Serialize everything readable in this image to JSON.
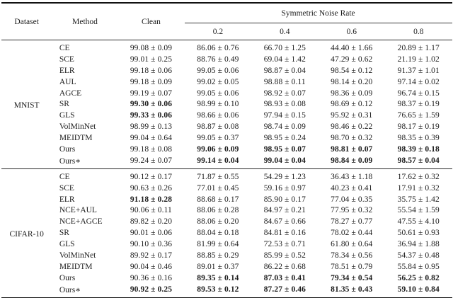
{
  "colors": {
    "background": "#ffffff",
    "text": "#1b1b1b",
    "rule": "#111111"
  },
  "table": {
    "headers": {
      "dataset": "Dataset",
      "method": "Method",
      "clean": "Clean",
      "noise_group": "Symmetric Noise Rate",
      "noise_levels": [
        "0.2",
        "0.4",
        "0.6",
        "0.8"
      ]
    },
    "sections": [
      {
        "dataset": "MNIST",
        "rows": [
          {
            "method": "CE",
            "cells": [
              {
                "v": "99.08 ± 0.09",
                "b": false
              },
              {
                "v": "86.06 ± 0.76",
                "b": false
              },
              {
                "v": "66.70 ± 1.25",
                "b": false
              },
              {
                "v": "44.40 ± 1.66",
                "b": false
              },
              {
                "v": "20.89 ± 1.17",
                "b": false
              }
            ]
          },
          {
            "method": "SCE",
            "cells": [
              {
                "v": "99.01 ± 0.25",
                "b": false
              },
              {
                "v": "88.76 ± 0.49",
                "b": false
              },
              {
                "v": "69.04 ± 1.42",
                "b": false
              },
              {
                "v": "47.29 ± 0.62",
                "b": false
              },
              {
                "v": "21.19 ± 1.02",
                "b": false
              }
            ]
          },
          {
            "method": "ELR",
            "cells": [
              {
                "v": "99.18 ± 0.06",
                "b": false
              },
              {
                "v": "99.05 ± 0.06",
                "b": false
              },
              {
                "v": "98.87 ± 0.04",
                "b": false
              },
              {
                "v": "98.54 ± 0.12",
                "b": false
              },
              {
                "v": "91.37 ± 1.01",
                "b": false
              }
            ]
          },
          {
            "method": "AUL",
            "cells": [
              {
                "v": "99.18 ± 0.09",
                "b": false
              },
              {
                "v": "99.02 ± 0.05",
                "b": false
              },
              {
                "v": "98.88 ± 0.11",
                "b": false
              },
              {
                "v": "98.14 ± 0.20",
                "b": false
              },
              {
                "v": "97.14 ± 0.02",
                "b": false
              }
            ]
          },
          {
            "method": "AGCE",
            "cells": [
              {
                "v": "99.19 ± 0.07",
                "b": false
              },
              {
                "v": "99.05 ± 0.06",
                "b": false
              },
              {
                "v": "98.92 ± 0.07",
                "b": false
              },
              {
                "v": "98.36 ± 0.09",
                "b": false
              },
              {
                "v": "96.74 ± 0.15",
                "b": false
              }
            ]
          },
          {
            "method": "SR",
            "cells": [
              {
                "v": "99.30 ± 0.06",
                "b": true
              },
              {
                "v": "98.99 ± 0.10",
                "b": false
              },
              {
                "v": "98.93 ± 0.08",
                "b": false
              },
              {
                "v": "98.69 ± 0.12",
                "b": false
              },
              {
                "v": "98.37 ± 0.19",
                "b": false
              }
            ]
          },
          {
            "method": "GLS",
            "cells": [
              {
                "v": "99.33 ± 0.06",
                "b": true
              },
              {
                "v": "98.66 ± 0.06",
                "b": false
              },
              {
                "v": "97.94 ± 0.15",
                "b": false
              },
              {
                "v": "95.92 ± 0.31",
                "b": false
              },
              {
                "v": "76.65 ± 1.59",
                "b": false
              }
            ]
          },
          {
            "method": "VolMinNet",
            "cells": [
              {
                "v": "98.99 ± 0.13",
                "b": false
              },
              {
                "v": "98.87 ± 0.08",
                "b": false
              },
              {
                "v": "98.74 ± 0.09",
                "b": false
              },
              {
                "v": "98.46 ± 0.22",
                "b": false
              },
              {
                "v": "98.17 ± 0.19",
                "b": false
              }
            ]
          },
          {
            "method": "MEIDTM",
            "cells": [
              {
                "v": "99.04 ± 0.64",
                "b": false
              },
              {
                "v": "99.05 ± 0.37",
                "b": false
              },
              {
                "v": "98.95 ± 0.24",
                "b": false
              },
              {
                "v": "98.70 ± 0.32",
                "b": false
              },
              {
                "v": "98.35 ± 0.39",
                "b": false
              }
            ]
          },
          {
            "method": "Ours",
            "cells": [
              {
                "v": "99.18 ± 0.08",
                "b": false
              },
              {
                "v": "99.06 ± 0.09",
                "b": true
              },
              {
                "v": "98.95 ± 0.07",
                "b": true
              },
              {
                "v": "98.81 ± 0.07",
                "b": true
              },
              {
                "v": "98.39 ± 0.18",
                "b": true
              }
            ]
          },
          {
            "method": "Ours∗",
            "cells": [
              {
                "v": "99.24 ± 0.07",
                "b": false
              },
              {
                "v": "99.14 ± 0.04",
                "b": true
              },
              {
                "v": "99.04 ± 0.04",
                "b": true
              },
              {
                "v": "98.84 ± 0.09",
                "b": true
              },
              {
                "v": "98.57 ± 0.04",
                "b": true
              }
            ]
          }
        ]
      },
      {
        "dataset": "CIFAR-10",
        "rows": [
          {
            "method": "CE",
            "cells": [
              {
                "v": "90.12 ± 0.17",
                "b": false
              },
              {
                "v": "71.87 ± 0.55",
                "b": false
              },
              {
                "v": "54.29 ± 1.23",
                "b": false
              },
              {
                "v": "36.43 ± 1.18",
                "b": false
              },
              {
                "v": "17.62 ± 0.32",
                "b": false
              }
            ]
          },
          {
            "method": "SCE",
            "cells": [
              {
                "v": "90.63 ± 0.26",
                "b": false
              },
              {
                "v": "77.01 ± 0.45",
                "b": false
              },
              {
                "v": "59.16 ± 0.97",
                "b": false
              },
              {
                "v": "40.23 ± 0.41",
                "b": false
              },
              {
                "v": "17.91 ± 0.32",
                "b": false
              }
            ]
          },
          {
            "method": "ELR",
            "cells": [
              {
                "v": "91.18 ± 0.28",
                "b": true
              },
              {
                "v": "88.68 ± 0.17",
                "b": false
              },
              {
                "v": "85.90 ± 0.17",
                "b": false
              },
              {
                "v": "77.04 ± 0.35",
                "b": false
              },
              {
                "v": "35.75 ± 1.42",
                "b": false
              }
            ]
          },
          {
            "method": "NCE+AUL",
            "cells": [
              {
                "v": "90.06 ± 0.11",
                "b": false
              },
              {
                "v": "88.06 ± 0.28",
                "b": false
              },
              {
                "v": "84.97 ± 0.21",
                "b": false
              },
              {
                "v": "77.95 ± 0.32",
                "b": false
              },
              {
                "v": "55.54 ± 1.59",
                "b": false
              }
            ]
          },
          {
            "method": "NCE+AGCE",
            "cells": [
              {
                "v": "89.82 ± 0.20",
                "b": false
              },
              {
                "v": "88.06 ± 0.20",
                "b": false
              },
              {
                "v": "84.67 ± 0.66",
                "b": false
              },
              {
                "v": "78.27 ± 0.77",
                "b": false
              },
              {
                "v": "47.55 ± 4.10",
                "b": false
              }
            ]
          },
          {
            "method": "SR",
            "cells": [
              {
                "v": "90.01 ± 0.06",
                "b": false
              },
              {
                "v": "88.04 ± 0.18",
                "b": false
              },
              {
                "v": "84.81 ± 0.16",
                "b": false
              },
              {
                "v": "78.02 ± 0.44",
                "b": false
              },
              {
                "v": "50.61 ± 0.93",
                "b": false
              }
            ]
          },
          {
            "method": "GLS",
            "cells": [
              {
                "v": "90.10 ± 0.36",
                "b": false
              },
              {
                "v": "81.99 ± 0.64",
                "b": false
              },
              {
                "v": "72.53 ± 0.71",
                "b": false
              },
              {
                "v": "61.80 ± 0.64",
                "b": false
              },
              {
                "v": "36.94 ± 1.88",
                "b": false
              }
            ]
          },
          {
            "method": "VolMinNet",
            "cells": [
              {
                "v": "89.92 ± 0.17",
                "b": false
              },
              {
                "v": "88.85 ± 0.29",
                "b": false
              },
              {
                "v": "85.99 ± 0.52",
                "b": false
              },
              {
                "v": "78.34 ± 0.56",
                "b": false
              },
              {
                "v": "54.37 ± 0.48",
                "b": false
              }
            ]
          },
          {
            "method": "MEIDTM",
            "cells": [
              {
                "v": "90.04 ± 0.46",
                "b": false
              },
              {
                "v": "89.01 ± 0.37",
                "b": false
              },
              {
                "v": "86.22 ± 0.68",
                "b": false
              },
              {
                "v": "78.51 ± 0.79",
                "b": false
              },
              {
                "v": "55.84 ± 0.95",
                "b": false
              }
            ]
          },
          {
            "method": "Ours",
            "cells": [
              {
                "v": "90.36 ± 0.16",
                "b": false
              },
              {
                "v": "89.35 ± 0.14",
                "b": true
              },
              {
                "v": "87.03 ± 0.41",
                "b": true
              },
              {
                "v": "79.34 ± 0.54",
                "b": true
              },
              {
                "v": "56.25 ± 0.82",
                "b": true
              }
            ]
          },
          {
            "method": "Ours∗",
            "cells": [
              {
                "v": "90.92 ± 0.25",
                "b": true
              },
              {
                "v": "89.53 ± 0.12",
                "b": true
              },
              {
                "v": "87.27 ± 0.46",
                "b": true
              },
              {
                "v": "81.35 ± 0.43",
                "b": true
              },
              {
                "v": "59.10 ± 0.84",
                "b": true
              }
            ]
          }
        ]
      }
    ]
  }
}
